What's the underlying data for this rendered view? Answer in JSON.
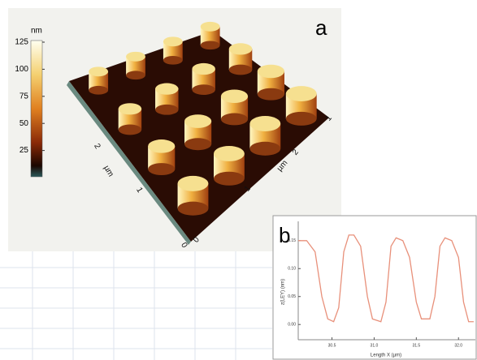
{
  "panel_a": {
    "label": "a",
    "colorbar": {
      "unit": "nm",
      "lim": [
        0,
        125
      ],
      "ticks": [
        125,
        100,
        75,
        50,
        25
      ]
    },
    "axis_labels": [
      "2",
      "µm",
      "1",
      "0",
      "0",
      "1",
      "µm",
      "2",
      "1"
    ]
  },
  "chart_data": {
    "type": "line",
    "label": "b",
    "xlabel": "Length X (µm)",
    "ylabel": "z(LEY) (nm)",
    "x": [
      30.1,
      30.2,
      30.3,
      30.38,
      30.45,
      30.52,
      30.58,
      30.64,
      30.7,
      30.76,
      30.84,
      30.92,
      30.98,
      31.08,
      31.14,
      31.2,
      31.26,
      31.34,
      31.42,
      31.5,
      31.56,
      31.66,
      31.72,
      31.78,
      31.84,
      31.92,
      32.0,
      32.06,
      32.12,
      32.18
    ],
    "series": [
      {
        "color": "#e8907a",
        "values": [
          0.15,
          0.15,
          0.13,
          0.05,
          0.01,
          0.005,
          0.03,
          0.13,
          0.16,
          0.16,
          0.14,
          0.05,
          0.01,
          0.005,
          0.04,
          0.14,
          0.155,
          0.15,
          0.12,
          0.04,
          0.01,
          0.01,
          0.05,
          0.14,
          0.155,
          0.15,
          0.12,
          0.04,
          0.005,
          0.005
        ]
      }
    ],
    "xlim": [
      30.1,
      32.2
    ],
    "ylim": [
      -0.02,
      0.17
    ],
    "xticks": [
      30.5,
      {
        "value": 31.0,
        "label": "31.0"
      },
      31.5,
      {
        "value": 32.0,
        "label": "32.0"
      }
    ],
    "yticks": [
      {
        "value": 0.0,
        "label": "0.00"
      },
      0.05,
      {
        "value": 0.1,
        "label": "0.10"
      },
      0.15
    ]
  }
}
